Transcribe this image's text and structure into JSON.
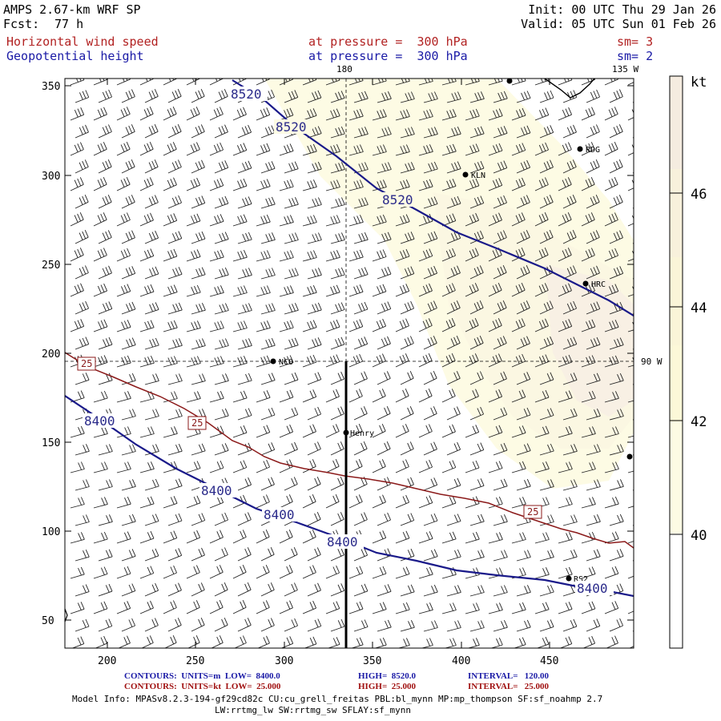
{
  "header": {
    "model": "AMPS 2.67-km WRF SP",
    "fcst_label": "Fcst:",
    "fcst_value": "77 h",
    "init": "Init: 00 UTC Thu 29 Jan 26",
    "valid": "Valid: 05 UTC Sun 01 Feb 26",
    "field1": "Horizontal wind speed",
    "field2": "Geopotential height",
    "pressure1": "at pressure =  300 hPa",
    "pressure2": "at pressure =  300 hPa",
    "sm1": "sm= 3",
    "sm2": "sm= 2"
  },
  "map": {
    "top_label_180": "180",
    "top_label_135w": "135 W",
    "right_label_90w": "90 W",
    "x_ticks": [
      "200",
      "250",
      "300",
      "350",
      "400",
      "450"
    ],
    "y_ticks": [
      "350",
      "300",
      "250",
      "200",
      "150",
      "100",
      "50"
    ],
    "stations": [
      {
        "name": "RDG"
      },
      {
        "name": "KLN"
      },
      {
        "name": "HRC"
      },
      {
        "name": "NCO"
      },
      {
        "name": "Henry"
      },
      {
        "name": "RS2"
      }
    ],
    "height_labels": [
      "8520",
      "8520",
      "8520",
      "8400",
      "8400",
      "8400",
      "8400",
      "8400"
    ],
    "speed_labels": [
      "25",
      "25",
      "25"
    ]
  },
  "colorbar": {
    "unit": "kt",
    "labels": [
      "46",
      "44",
      "42",
      "40"
    ],
    "colors": [
      "#f5ece0",
      "#f8f2dc",
      "#fbf7d8",
      "#fcf9dc",
      "#fdfbe4",
      "#ffffff"
    ]
  },
  "footer": {
    "contours1": "CONTOURS:  UNITS=m  LOW=  8400.0",
    "high1": "HIGH=  8520.0",
    "interval1": "INTERVAL=   120.00",
    "contours2": "CONTOURS:  UNITS=kt  LOW=  25.000",
    "high2": "HIGH=  25.000",
    "interval2": "INTERVAL=   25.000",
    "model_info": "Model Info: MPASv8.2.3-194-gf29cd82c CU:cu_grell_freitas PBL:bl_mynn MP:mp_thompson SF:sf_noahmp 2.7",
    "model_info2": "LW:rrtmg_lw SW:rrtmg_sw SFLAY:sf_mynn"
  }
}
